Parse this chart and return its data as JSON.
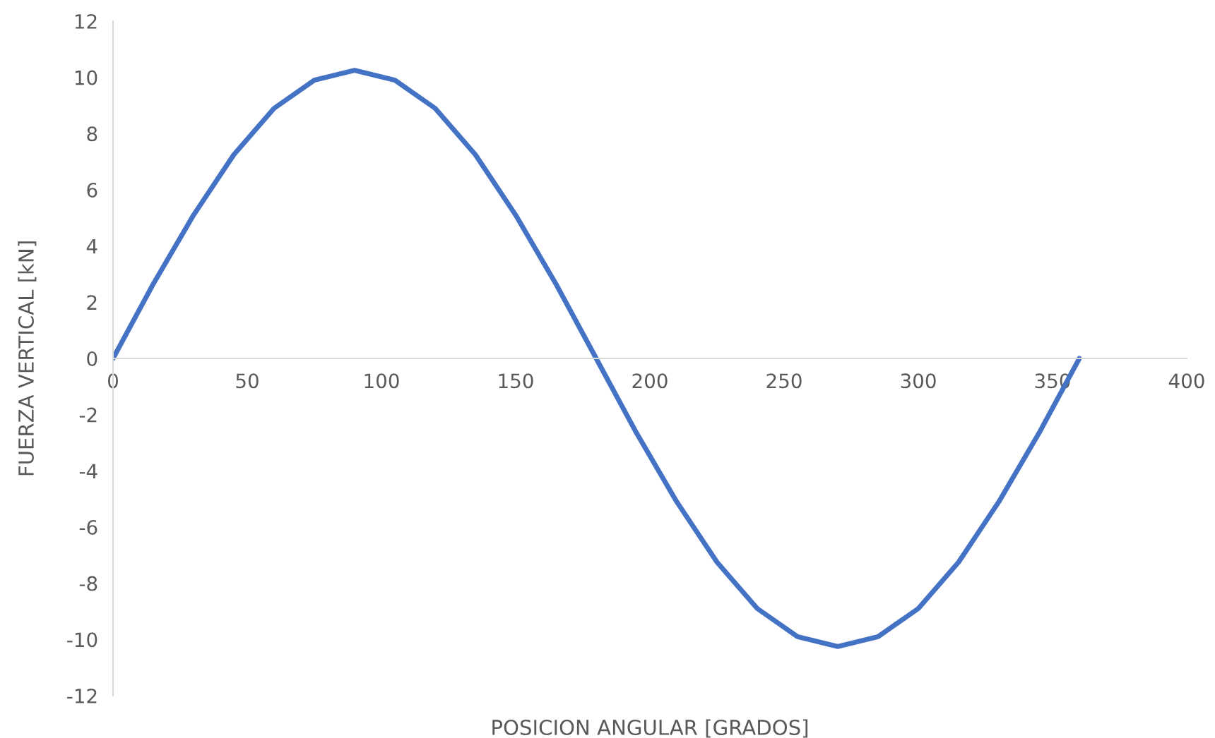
{
  "chart_data": {
    "type": "line",
    "xlabel": "POSICION ANGULAR [GRADOS]",
    "ylabel": "FUERZA VERTICAL [kN]",
    "x": [
      0,
      15,
      30,
      45,
      60,
      75,
      90,
      105,
      120,
      135,
      150,
      165,
      180,
      195,
      210,
      225,
      240,
      255,
      270,
      285,
      300,
      315,
      330,
      345,
      360
    ],
    "series": [
      {
        "color": "#4472c4",
        "values": [
          0,
          2.65,
          5.1,
          7.25,
          8.9,
          9.9,
          10.25,
          9.9,
          8.9,
          7.25,
          5.1,
          2.65,
          0,
          -2.65,
          -5.1,
          -7.25,
          -8.9,
          -9.9,
          -10.25,
          -9.9,
          -8.9,
          -7.25,
          -5.1,
          -2.65,
          0
        ]
      }
    ],
    "xlim": [
      0,
      400
    ],
    "xticks": [
      0,
      50,
      100,
      150,
      200,
      250,
      300,
      350,
      400
    ],
    "ylim": [
      -12,
      12
    ],
    "yticks": [
      -12,
      -10,
      -8,
      -6,
      -4,
      -2,
      0,
      2,
      4,
      6,
      8,
      10,
      12
    ],
    "grid": false,
    "marker": "none",
    "line_style": "solid"
  }
}
